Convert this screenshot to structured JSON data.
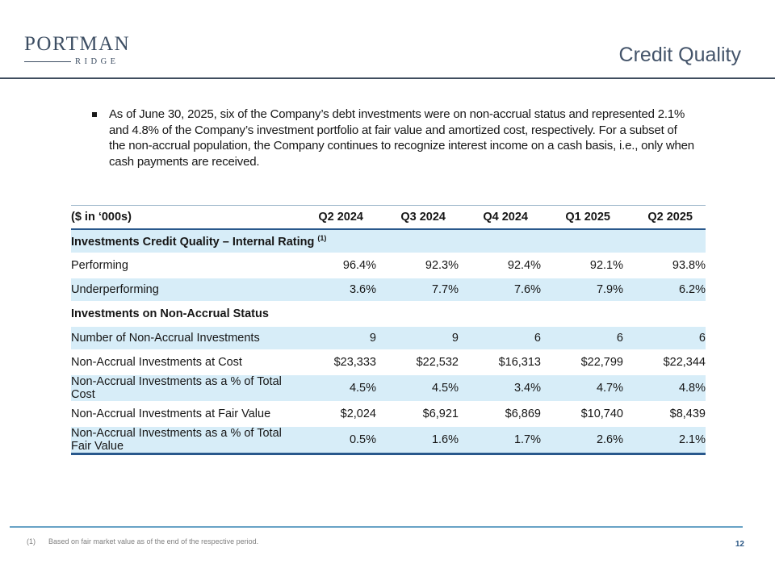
{
  "slide": {
    "logo_primary": "PORTMAN",
    "logo_secondary": "RIDGE",
    "title": "Credit Quality",
    "page_number": "12"
  },
  "bullet": {
    "text": "As of June 30, 2025, six of the Company’s debt investments were on non-accrual status and represented 2.1% and 4.8% of the Company’s investment portfolio at fair value and amortized cost, respectively. For a subset of the non-accrual population, the Company continues to recognize interest income on a cash basis, i.e., only when cash payments are received."
  },
  "table": {
    "unit_label": "($ in ‘000s)",
    "columns": [
      "Q2 2024",
      "Q3 2024",
      "Q4 2024",
      "Q1 2025",
      "Q2 2025"
    ],
    "rows": [
      {
        "type": "section",
        "label": "Investments Credit Quality – Internal Rating",
        "sup": "(1)",
        "shaded": true
      },
      {
        "type": "data",
        "label": "Performing",
        "values": [
          "96.4%",
          "92.3%",
          "92.4%",
          "92.1%",
          "93.8%"
        ],
        "shaded": false
      },
      {
        "type": "data",
        "label": "Underperforming",
        "values": [
          "3.6%",
          "7.7%",
          "7.6%",
          "7.9%",
          "6.2%"
        ],
        "shaded": true
      },
      {
        "type": "section",
        "label": "Investments on Non-Accrual Status",
        "sup": "",
        "shaded": false
      },
      {
        "type": "data",
        "label": "Number of Non-Accrual Investments",
        "values": [
          "9",
          "9",
          "6",
          "6",
          "6"
        ],
        "shaded": true
      },
      {
        "type": "data",
        "label": "Non-Accrual Investments at Cost",
        "values": [
          "$23,333",
          "$22,532",
          "$16,313",
          "$22,799",
          "$22,344"
        ],
        "shaded": false
      },
      {
        "type": "data",
        "label": "Non-Accrual Investments as a % of Total Cost",
        "values": [
          "4.5%",
          "4.5%",
          "3.4%",
          "4.7%",
          "4.8%"
        ],
        "shaded": true
      },
      {
        "type": "data",
        "label": "Non-Accrual Investments at Fair Value",
        "values": [
          "$2,024",
          "$6,921",
          "$6,869",
          "$10,740",
          "$8,439"
        ],
        "shaded": false
      },
      {
        "type": "data",
        "label": "Non-Accrual Investments as a % of Total Fair Value",
        "values": [
          "0.5%",
          "1.6%",
          "1.7%",
          "2.6%",
          "2.1%"
        ],
        "shaded": true
      }
    ]
  },
  "footnote": {
    "ref": "(1)",
    "text": "Based on fair market value as of the end of the respective period."
  },
  "colors": {
    "brand_navy": "#3d4e63",
    "title_slate": "#44546a",
    "table_band_blue": "#d7edf8",
    "table_border_navy": "#29588c",
    "footer_line_blue": "#68a2c6",
    "footnote_gray": "#7f7f7f",
    "page_number_blue": "#2d5986"
  }
}
